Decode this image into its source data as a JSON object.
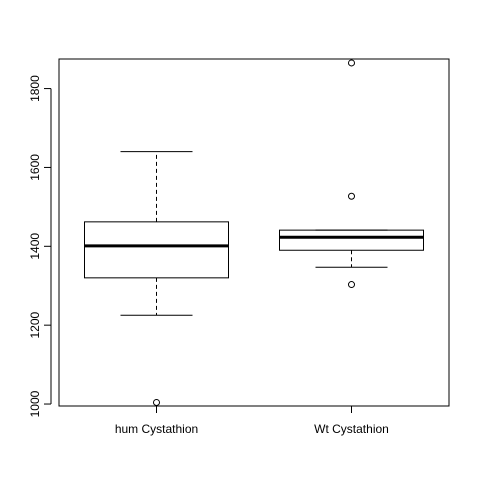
{
  "chart_data": {
    "type": "boxplot",
    "title": "",
    "xlabel": "",
    "ylabel": "",
    "ylim": [
      995,
      1875
    ],
    "y_ticks": [
      1000,
      1200,
      1400,
      1600,
      1800
    ],
    "y_tick_labels": [
      "1000",
      "1200",
      "1400",
      "1600",
      "1800"
    ],
    "grid": false,
    "legend": "none",
    "categories": [
      "hum Cystathion",
      "Wt Cystathion"
    ],
    "boxes": [
      {
        "category": "hum Cystathion",
        "whisker_low": 1225,
        "q1": 1320,
        "median": 1401,
        "q3": 1462,
        "whisker_high": 1640,
        "outliers": [
          1004
        ]
      },
      {
        "category": "Wt Cystathion",
        "whisker_low": 1347,
        "q1": 1390,
        "median": 1423,
        "q3": 1441,
        "whisker_high": 1441,
        "outliers": [
          1303,
          1527,
          1865
        ]
      }
    ]
  }
}
